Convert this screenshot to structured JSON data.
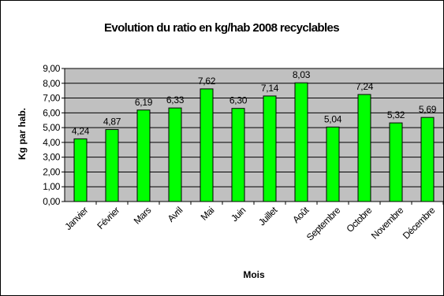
{
  "chart_data": {
    "type": "bar",
    "title": "Evolution du ratio en kg/hab 2008 recyclables",
    "xlabel": "Mois",
    "ylabel": "Kg par hab.",
    "ylim": [
      0,
      9
    ],
    "ytick_labels": [
      "0,00",
      "1,00",
      "2,00",
      "3,00",
      "4,00",
      "5,00",
      "6,00",
      "7,00",
      "8,00",
      "9,00"
    ],
    "categories": [
      "Janvier",
      "Février",
      "Mars",
      "Avril",
      "Mai",
      "Juin",
      "Juillet",
      "Août",
      "Septembre",
      "Octobre",
      "Novembre",
      "Décembre"
    ],
    "values": [
      4.24,
      4.87,
      6.19,
      6.33,
      7.62,
      6.3,
      7.14,
      8.03,
      5.04,
      7.24,
      5.32,
      5.69
    ],
    "value_labels": [
      "4,24",
      "4,87",
      "6,19",
      "6,33",
      "7,62",
      "6,30",
      "7,14",
      "8,03",
      "5,04",
      "7,24",
      "5,32",
      "5,69"
    ],
    "grid": true,
    "legend": "none",
    "colors": {
      "bar_fill": "#00ff00",
      "bar_stroke": "#000000",
      "plot_background": "#c0c0c0",
      "gridline": "#000000"
    }
  }
}
